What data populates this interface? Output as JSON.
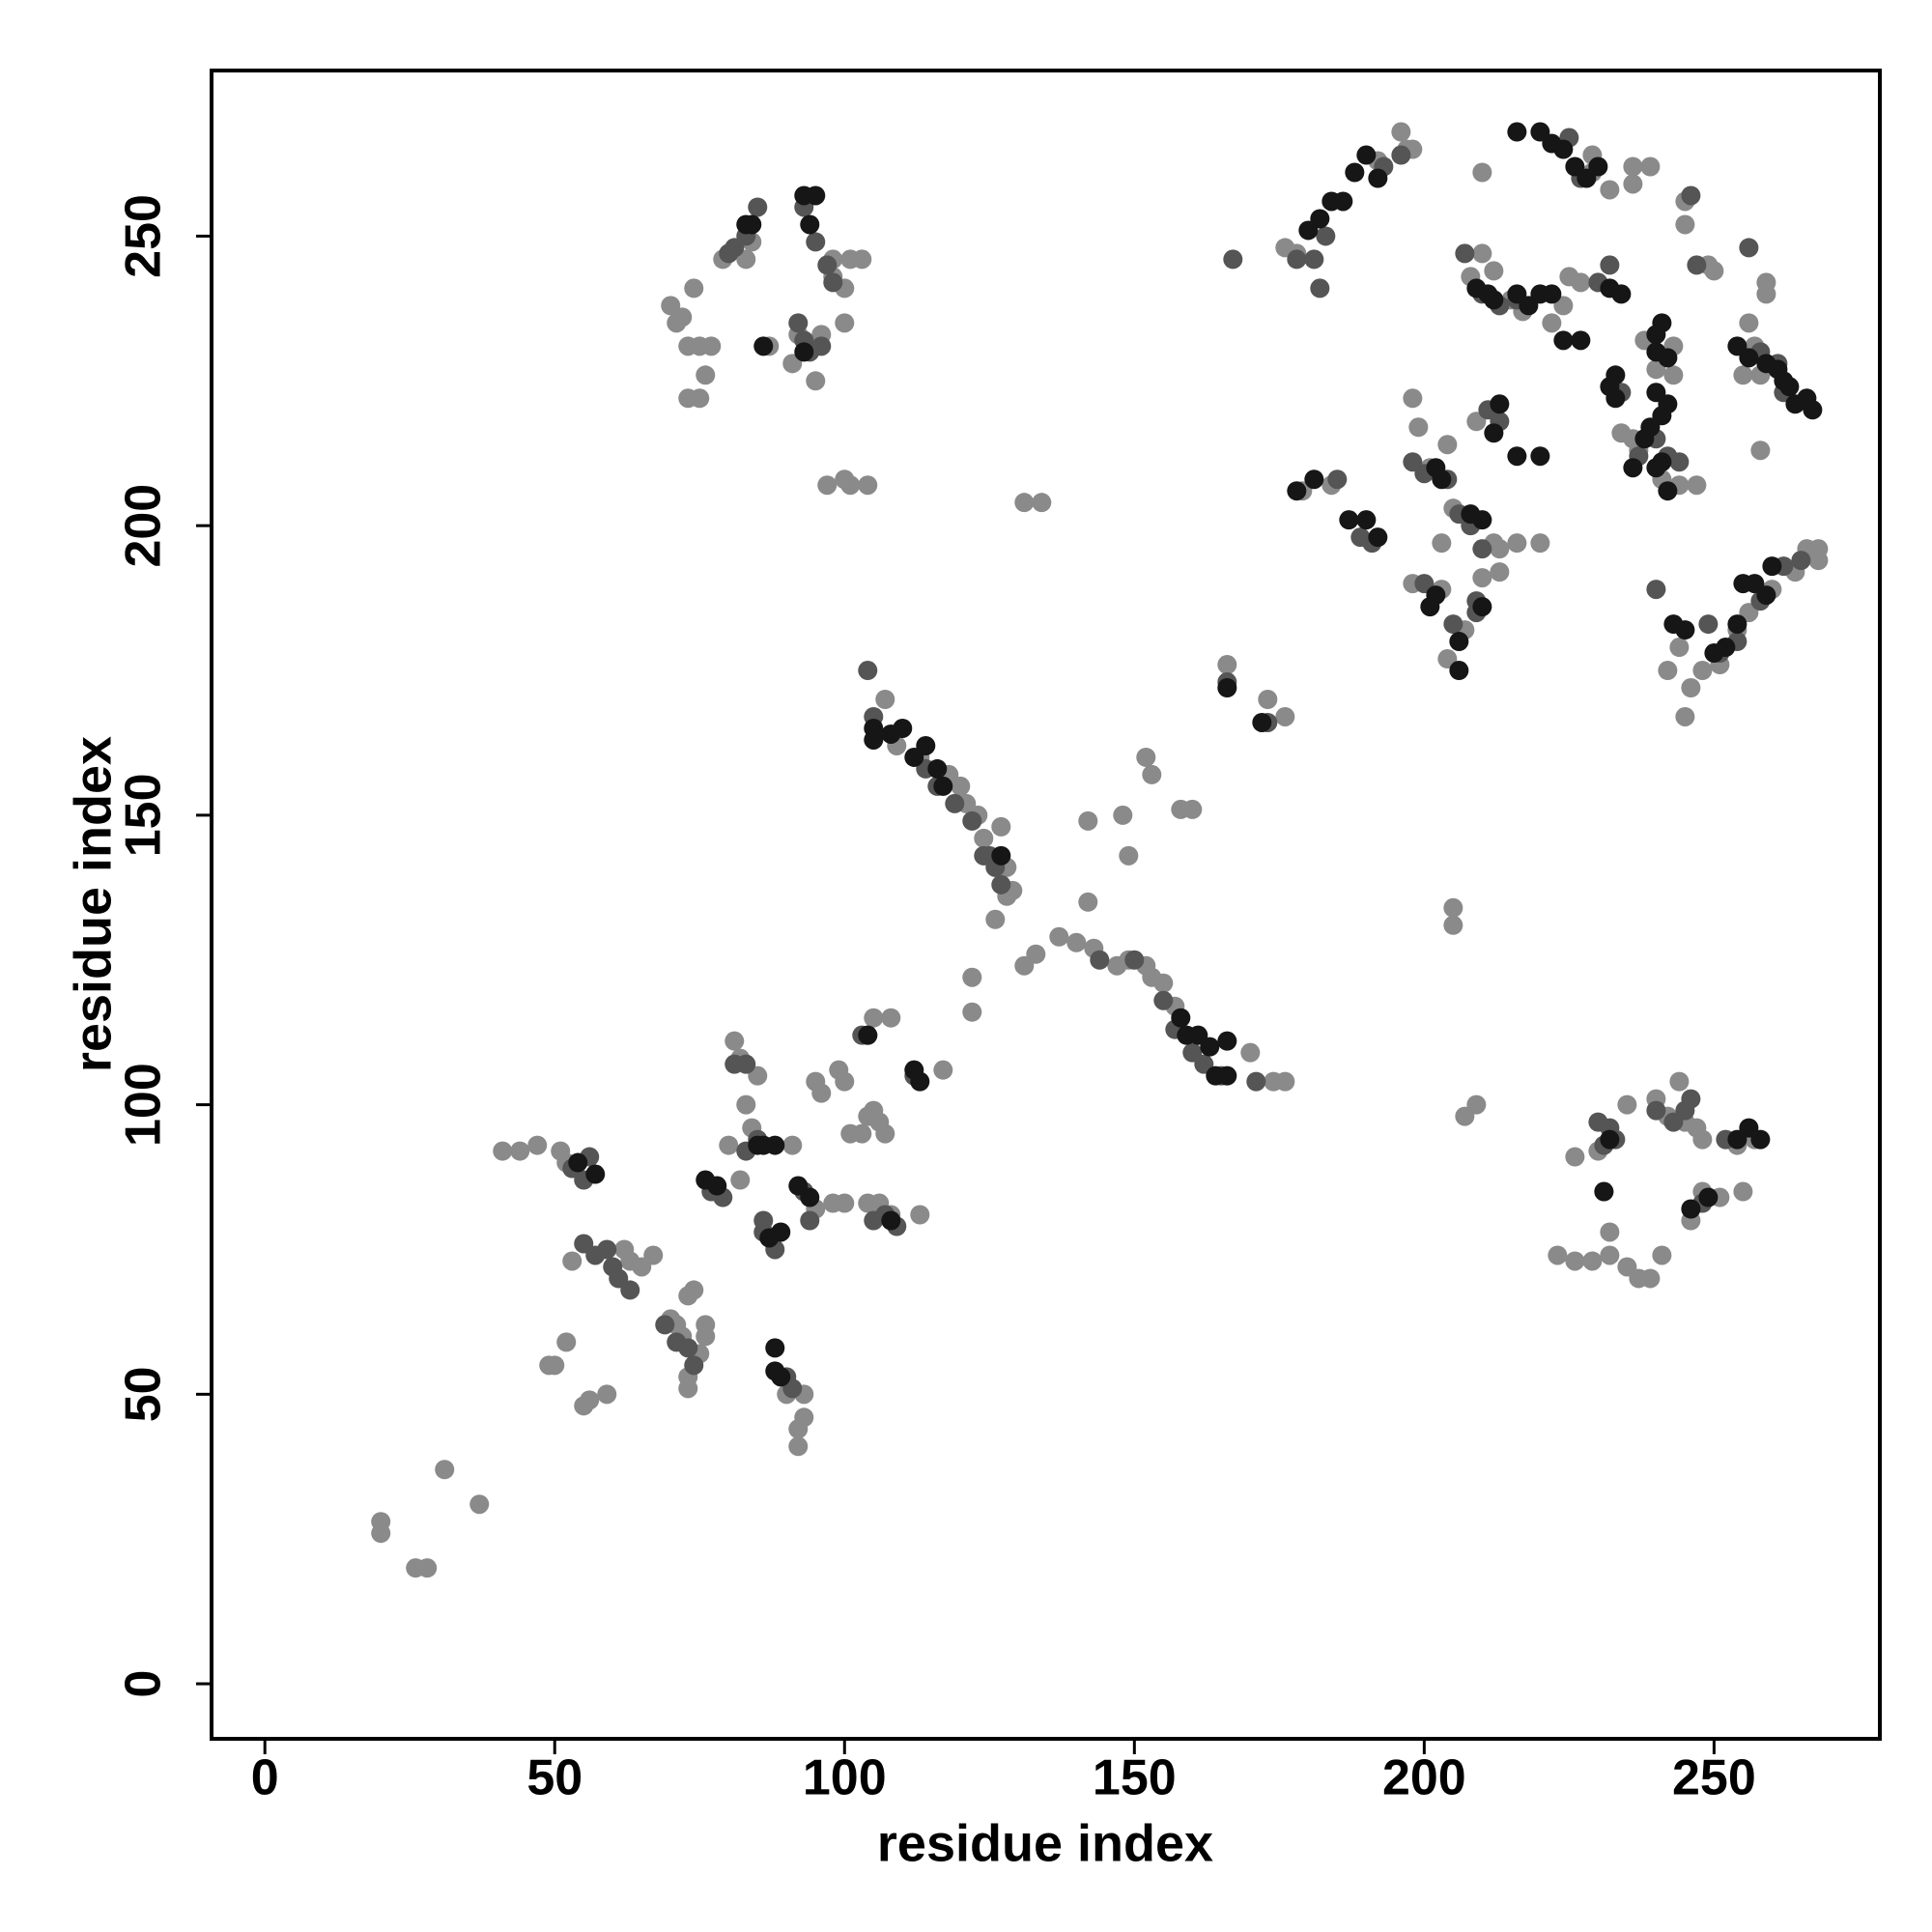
{
  "chart_data": {
    "type": "scatter",
    "xlabel": "residue index",
    "ylabel": "residue index",
    "xlim": [
      -9.2,
      278.6
    ],
    "ylim": [
      -9.5,
      278.6
    ],
    "xticks": [
      0,
      50,
      100,
      150,
      200,
      250
    ],
    "yticks": [
      0,
      50,
      100,
      150,
      200,
      250
    ],
    "series": [
      {
        "color": "#8a8a8a",
        "x": [
          20,
          20,
          26,
          28,
          31,
          37,
          41,
          44,
          47,
          51,
          52,
          53,
          52,
          50,
          49,
          55,
          56,
          59,
          62,
          63,
          65,
          67,
          70,
          71,
          72,
          73,
          74,
          73,
          73,
          75,
          76,
          76,
          72,
          70,
          71,
          74,
          73,
          75,
          77,
          73,
          75,
          76,
          79,
          83,
          84,
          87,
          91,
          92,
          95,
          96,
          98,
          100,
          98,
          101,
          103,
          100,
          97,
          100,
          101,
          104,
          131,
          134,
          80,
          82,
          81,
          82,
          83,
          84,
          85,
          91,
          93,
          92,
          93,
          92,
          90,
          95,
          98,
          100,
          104,
          106,
          108,
          113,
          95,
          96,
          99,
          100,
          101,
          103,
          104,
          105,
          106,
          107,
          105,
          108,
          117,
          107,
          109,
          113,
          118,
          120,
          121,
          123,
          124,
          127,
          128,
          128,
          129,
          131,
          133,
          137,
          140,
          143,
          147,
          149,
          152,
          153,
          155,
          157,
          148,
          149,
          152,
          153,
          158,
          160,
          173,
          176,
          174,
          176,
          170,
          126,
          122,
          122,
          142,
          142,
          166,
          178,
          176,
          179,
          184,
          198,
          199,
          201,
          204,
          205,
          203,
          209,
          213,
          212,
          216,
          220,
          213,
          210,
          198,
          203,
          204,
          207,
          210,
          205,
          205,
          207,
          209,
          196,
          197,
          198,
          192,
          210,
          208,
          212,
          215,
          217,
          222,
          224,
          225,
          227,
          229,
          229,
          232,
          236,
          238,
          240,
          243,
          243,
          245,
          245,
          249,
          250,
          256,
          255,
          257,
          258,
          259,
          259,
          258,
          234,
          236,
          237,
          241,
          244,
          247,
          236,
          239,
          223,
          226,
          229,
          232,
          235,
          237,
          239,
          241,
          226,
          230,
          231,
          232,
          235,
          240,
          242,
          244,
          245,
          247,
          248,
          246,
          248,
          251,
          254,
          255,
          257,
          245,
          246,
          248,
          251,
          254,
          256,
          260,
          264,
          266,
          268,
          268,
          242,
          244
        ],
        "values": [
          28,
          26,
          20,
          20,
          37,
          31,
          92,
          92,
          93,
          92,
          90,
          73,
          59,
          55,
          55,
          48,
          49,
          50,
          75,
          73,
          72,
          74,
          63,
          62,
          60,
          67,
          68,
          51,
          53,
          57,
          62,
          60,
          236,
          238,
          235,
          241,
          231,
          231,
          231,
          222,
          222,
          226,
          246,
          246,
          249,
          231,
          228,
          233,
          225,
          233,
          243,
          241,
          246,
          246,
          246,
          235,
          207,
          208,
          207,
          207,
          204,
          204,
          93,
          87,
          111,
          108,
          100,
          96,
          105,
          93,
          50,
          44,
          46,
          41,
          50,
          82,
          83,
          83,
          83,
          83,
          81,
          81,
          104,
          102,
          106,
          104,
          95,
          95,
          98,
          99,
          97,
          95,
          115,
          115,
          106,
          170,
          162,
          160,
          157,
          155,
          152,
          150,
          146,
          148,
          141,
          136,
          137,
          124,
          126,
          129,
          128,
          127,
          124,
          125,
          124,
          122,
          121,
          117,
          150,
          143,
          160,
          157,
          151,
          151,
          170,
          167,
          104,
          104,
          109,
          132,
          122,
          116,
          149,
          135,
          176,
          247,
          248,
          206,
          207,
          222,
          217,
          210,
          214,
          203,
          197,
          218,
          196,
          197,
          197,
          197,
          192,
          191,
          190,
          189,
          177,
          182,
          261,
          134,
          131,
          98,
          100,
          268,
          265,
          265,
          263,
          247,
          243,
          244,
          239,
          237,
          235,
          238,
          243,
          242,
          261,
          264,
          258,
          259,
          232,
          227,
          231,
          226,
          256,
          252,
          245,
          244,
          235,
          226,
          231,
          226,
          242,
          240,
          213,
          216,
          215,
          213,
          208,
          207,
          207,
          262,
          262,
          74,
          73,
          73,
          74,
          72,
          70,
          70,
          74,
          91,
          92,
          85,
          78,
          100,
          101,
          98,
          104,
          97,
          96,
          94,
          80,
          85,
          84,
          93,
          85,
          94,
          167,
          172,
          175,
          176,
          182,
          185,
          189,
          192,
          196,
          196,
          194,
          175,
          179
        ]
      },
      {
        "color": "#555555",
        "x": [
          53,
          55,
          55,
          57,
          59,
          60,
          61,
          63,
          69,
          71,
          73,
          74,
          56,
          81,
          83,
          77,
          79,
          83,
          85,
          86,
          86,
          88,
          90,
          91,
          93,
          94,
          105,
          107,
          109,
          103,
          104,
          112,
          93,
          94,
          96,
          93,
          95,
          97,
          98,
          92,
          81,
          83,
          85,
          80,
          104,
          105,
          114,
          116,
          119,
          122,
          124,
          126,
          127,
          125,
          144,
          150,
          155,
          157,
          160,
          162,
          165,
          171,
          166,
          173,
          167,
          178,
          181,
          182,
          183,
          185,
          189,
          191,
          198,
          200,
          204,
          206,
          208,
          210,
          211,
          213,
          209,
          200,
          205,
          209,
          193,
          196,
          207,
          210,
          213,
          216,
          225,
          227,
          230,
          232,
          234,
          237,
          240,
          242,
          244,
          247,
          246,
          256,
          258,
          261,
          262,
          240,
          249,
          251,
          254,
          258,
          262,
          265,
          230,
          231,
          232,
          233,
          240,
          243,
          245,
          246,
          248,
          252
        ],
        "values": [
          89,
          87,
          76,
          74,
          75,
          72,
          70,
          68,
          62,
          59,
          58,
          55,
          91,
          107,
          107,
          85,
          84,
          92,
          94,
          78,
          80,
          75,
          53,
          51,
          85,
          80,
          80,
          81,
          79,
          112,
          112,
          105,
          232,
          230,
          231,
          255,
          249,
          245,
          242,
          235,
          248,
          250,
          255,
          247,
          175,
          167,
          158,
          155,
          152,
          149,
          143,
          141,
          138,
          143,
          125,
          125,
          118,
          113,
          109,
          107,
          105,
          104,
          173,
          166,
          246,
          246,
          246,
          241,
          250,
          208,
          198,
          197,
          211,
          209,
          208,
          202,
          200,
          196,
          220,
          218,
          187,
          190,
          183,
          185,
          262,
          264,
          247,
          240,
          238,
          239,
          267,
          260,
          242,
          245,
          223,
          212,
          215,
          212,
          211,
          245,
          257,
          248,
          230,
          228,
          223,
          189,
          183,
          178,
          180,
          187,
          193,
          194,
          97,
          93,
          96,
          94,
          99,
          97,
          99,
          101,
          83,
          94
        ]
      },
      {
        "color": "#161616",
        "x": [
          57,
          54,
          78,
          76,
          85,
          86,
          88,
          87,
          89,
          88,
          88,
          89,
          92,
          94,
          93,
          95,
          94,
          83,
          84,
          86,
          93,
          105,
          105,
          108,
          110,
          112,
          114,
          116,
          117,
          127,
          158,
          159,
          161,
          163,
          164,
          166,
          166,
          104,
          113,
          112,
          108,
          166,
          172,
          178,
          181,
          180,
          182,
          184,
          188,
          190,
          192,
          186,
          190,
          187,
          192,
          202,
          203,
          201,
          202,
          206,
          206,
          210,
          208,
          213,
          212,
          210,
          216,
          220,
          209,
          211,
          212,
          216,
          218,
          220,
          222,
          216,
          220,
          222,
          224,
          226,
          228,
          230,
          227,
          224,
          232,
          234,
          233,
          232,
          233,
          236,
          238,
          239,
          240,
          241,
          242,
          240,
          240,
          242,
          242,
          241,
          254,
          256,
          259,
          261,
          262,
          263,
          264,
          266,
          267,
          243,
          245,
          250,
          252,
          254,
          255,
          257,
          259,
          260,
          241,
          240,
          231,
          232,
          246,
          249,
          254,
          256,
          258
        ],
        "values": [
          88,
          90,
          86,
          87,
          93,
          93,
          93,
          77,
          78,
          58,
          54,
          53,
          86,
          84,
          257,
          257,
          252,
          252,
          252,
          231,
          230,
          165,
          163,
          164,
          165,
          160,
          162,
          158,
          155,
          143,
          115,
          112,
          112,
          110,
          105,
          111,
          105,
          112,
          104,
          106,
          80,
          172,
          166,
          206,
          208,
          251,
          253,
          256,
          261,
          264,
          260,
          256,
          201,
          201,
          198,
          210,
          208,
          186,
          188,
          180,
          175,
          201,
          202,
          221,
          216,
          186,
          212,
          212,
          241,
          240,
          239,
          240,
          238,
          240,
          240,
          268,
          268,
          266,
          265,
          262,
          260,
          262,
          232,
          232,
          241,
          240,
          226,
          224,
          222,
          210,
          215,
          217,
          210,
          211,
          206,
          233,
          230,
          229,
          221,
          219,
          231,
          229,
          228,
          227,
          225,
          224,
          221,
          222,
          220,
          183,
          182,
          178,
          179,
          183,
          190,
          190,
          188,
          193,
          235,
          223,
          85,
          94,
          82,
          84,
          94,
          96,
          94
        ]
      }
    ]
  }
}
